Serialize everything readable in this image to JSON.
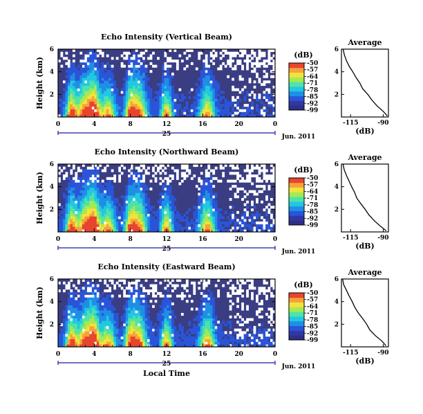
{
  "figure": {
    "colorbar_unit": "(dB)",
    "date_label": "Jun. 2011",
    "day_label": "25",
    "xlabel": "Local Time",
    "ylabel": "Height (km)",
    "profile_title": "Average",
    "profile_xlabel": "(dB)"
  },
  "colors": {
    "background_level": "#3a3d82",
    "scale": [
      "#2e2f86",
      "#3138a3",
      "#2a55d8",
      "#1f8fe6",
      "#22c8e0",
      "#4fe3a8",
      "#a5ea52",
      "#f3e33d",
      "#f6a23a",
      "#e8452e"
    ]
  },
  "chart_data": [
    {
      "type": "heatmap",
      "title": "Echo Intensity (Vertical Beam)",
      "xlabel": "",
      "ylabel": "Height (km)",
      "x_ticks": [
        "0",
        "4",
        "8",
        "12",
        "16",
        "20",
        "0"
      ],
      "x_range": [
        0,
        24
      ],
      "y_ticks": [
        "6",
        "4",
        "2"
      ],
      "y_range": [
        0,
        6
      ],
      "colorbar": {
        "unit": "(dB)",
        "ticks": [
          -50,
          -57,
          -64,
          -71,
          -78,
          -85,
          -92,
          -99
        ],
        "range": [
          -99,
          -50
        ]
      },
      "peaks_hours": [
        1.5,
        3.0,
        4.0,
        5.5,
        8.0,
        9.0,
        12.0,
        16.5
      ],
      "profile": {
        "title": "Average",
        "xlabel": "(dB)",
        "x_ticks": [
          "-115",
          "-90"
        ],
        "xlim": [
          -122,
          -86
        ],
        "y_ticks": [
          "6",
          "4",
          "2"
        ],
        "ylim": [
          0,
          6
        ],
        "height_km": [
          0.1,
          0.5,
          1.0,
          1.5,
          2.0,
          2.5,
          3.0,
          3.5,
          4.0,
          4.5,
          5.0,
          5.5,
          6.0
        ],
        "power_db": [
          -87,
          -90,
          -95,
          -99,
          -102,
          -106,
          -108,
          -111,
          -113,
          -116,
          -118,
          -120,
          -121
        ]
      }
    },
    {
      "type": "heatmap",
      "title": "Echo Intensity (Northward Beam)",
      "xlabel": "",
      "ylabel": "Height (km)",
      "x_ticks": [
        "0",
        "4",
        "8",
        "12",
        "16",
        "20",
        "0"
      ],
      "x_range": [
        0,
        24
      ],
      "y_ticks": [
        "6",
        "4",
        "2"
      ],
      "y_range": [
        0,
        6
      ],
      "colorbar": {
        "unit": "(dB)",
        "ticks": [
          -50,
          -57,
          -64,
          -71,
          -78,
          -85,
          -92,
          -99
        ],
        "range": [
          -99,
          -50
        ]
      },
      "peaks_hours": [
        1.5,
        3.0,
        4.0,
        5.5,
        8.0,
        9.0,
        12.0,
        16.5
      ],
      "profile": {
        "title": "Average",
        "xlabel": "(dB)",
        "x_ticks": [
          "-115",
          "-90"
        ],
        "xlim": [
          -122,
          -86
        ],
        "y_ticks": [
          "6",
          "4",
          "2"
        ],
        "ylim": [
          0,
          6
        ],
        "height_km": [
          0.1,
          0.5,
          1.0,
          1.5,
          2.0,
          2.5,
          3.0,
          3.5,
          4.0,
          4.5,
          5.0,
          5.5,
          6.0
        ],
        "power_db": [
          -88,
          -92,
          -97,
          -101,
          -104,
          -107,
          -110,
          -112,
          -114,
          -116,
          -118,
          -120,
          -121
        ]
      }
    },
    {
      "type": "heatmap",
      "title": "Echo Intensity (Eastward Beam)",
      "xlabel": "Local Time",
      "ylabel": "Height (km)",
      "x_ticks": [
        "0",
        "4",
        "8",
        "12",
        "16",
        "20",
        "0"
      ],
      "x_range": [
        0,
        24
      ],
      "y_ticks": [
        "6",
        "4",
        "2"
      ],
      "y_range": [
        0,
        6
      ],
      "colorbar": {
        "unit": "(dB)",
        "ticks": [
          -50,
          -57,
          -64,
          -71,
          -78,
          -85,
          -92,
          -99
        ],
        "range": [
          -99,
          -50
        ]
      },
      "peaks_hours": [
        1.5,
        3.0,
        4.0,
        5.5,
        8.0,
        9.0,
        12.0,
        16.5
      ],
      "profile": {
        "title": "Average",
        "xlabel": "(dB)",
        "x_ticks": [
          "-115",
          "-90"
        ],
        "xlim": [
          -122,
          -86
        ],
        "y_ticks": [
          "6",
          "4",
          "2"
        ],
        "ylim": [
          0,
          6
        ],
        "height_km": [
          0.1,
          0.5,
          1.0,
          1.5,
          2.0,
          2.5,
          3.0,
          3.5,
          4.0,
          4.5,
          5.0,
          5.5,
          6.0
        ],
        "power_db": [
          -88,
          -91,
          -96,
          -100,
          -103,
          -106,
          -109,
          -112,
          -114,
          -116,
          -118,
          -120,
          -121
        ]
      }
    }
  ]
}
